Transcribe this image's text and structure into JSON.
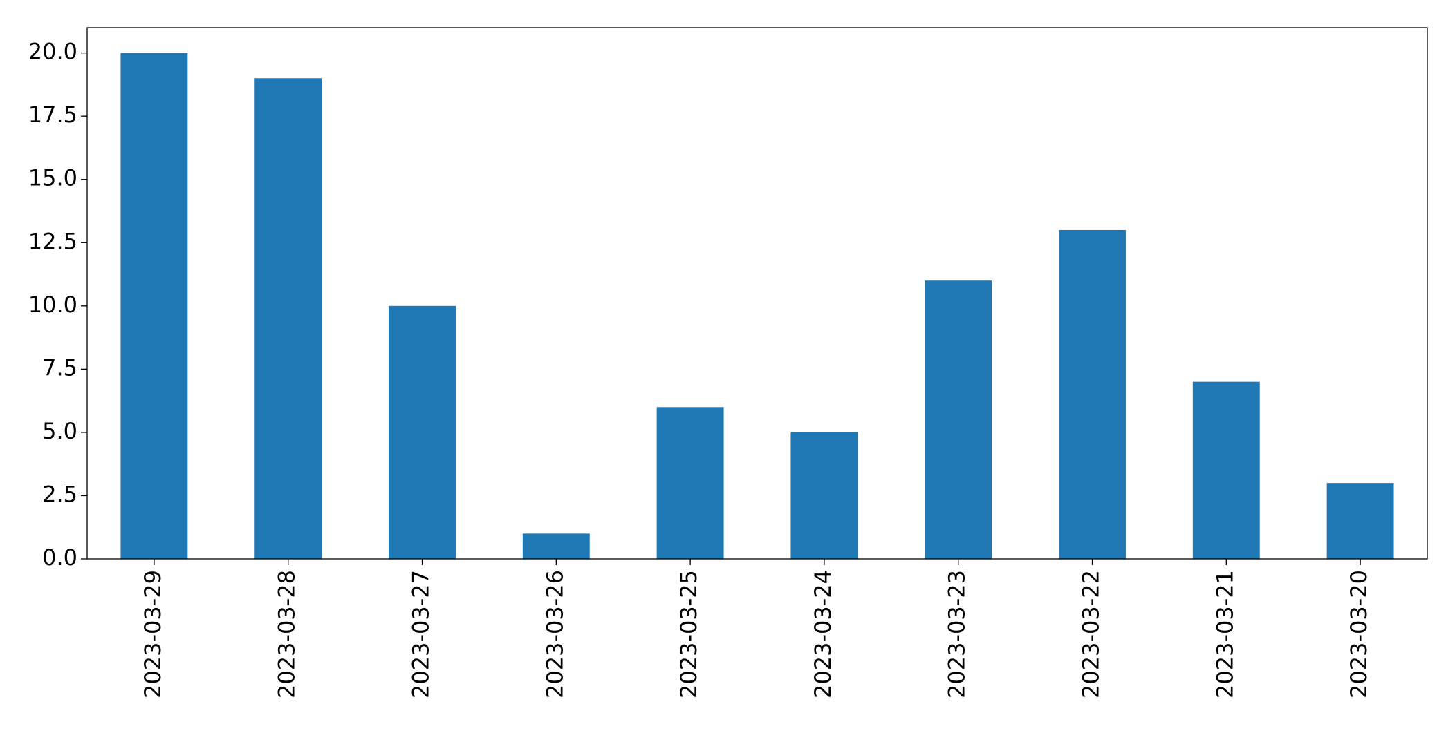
{
  "chart_data": {
    "type": "bar",
    "categories": [
      "2023-03-29",
      "2023-03-28",
      "2023-03-27",
      "2023-03-26",
      "2023-03-25",
      "2023-03-24",
      "2023-03-23",
      "2023-03-22",
      "2023-03-21",
      "2023-03-20"
    ],
    "values": [
      20,
      19,
      10,
      1,
      6,
      5,
      11,
      13,
      7,
      3
    ],
    "color": "#1f77b4",
    "ylim": [
      0,
      21
    ],
    "yticks": [
      {
        "value": 0,
        "label": "0.0"
      },
      2.5,
      {
        "value": 5,
        "label": "5.0"
      },
      7.5,
      {
        "value": 10,
        "label": "10.0"
      },
      12.5,
      {
        "value": 15,
        "label": "15.0"
      },
      17.5,
      {
        "value": 20,
        "label": "20.0"
      }
    ],
    "grid": false
  }
}
